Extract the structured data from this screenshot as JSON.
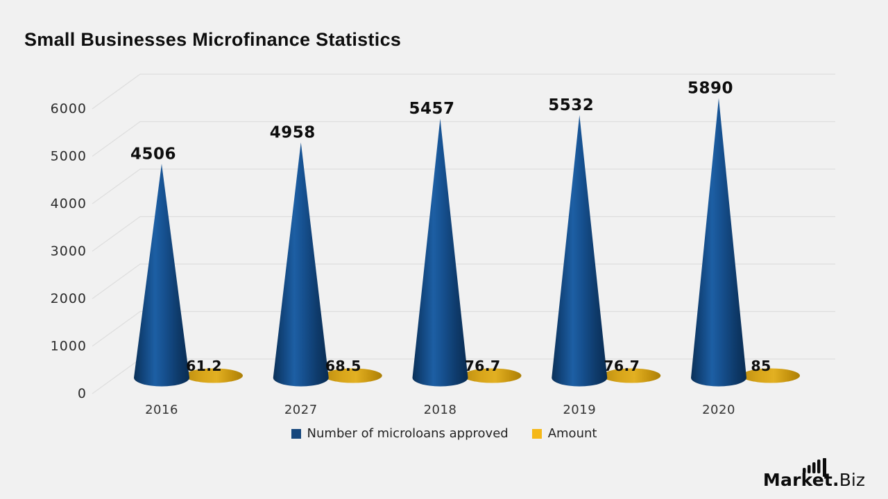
{
  "title": "Small Businesses Microfinance Statistics",
  "chart_data": {
    "type": "bar",
    "variant": "3d-cone",
    "title": "Small Businesses Microfinance Statistics",
    "xlabel": "",
    "ylabel": "",
    "categories": [
      "2016",
      "2027",
      "2018",
      "2019",
      "2020"
    ],
    "series": [
      {
        "name": "Number of microloans approved",
        "values": [
          4506,
          4958,
          5457,
          5532,
          5890
        ],
        "labels": [
          "4506",
          "4958",
          "5457",
          "5532",
          "5890"
        ],
        "color": "#16477d"
      },
      {
        "name": "Amount",
        "values": [
          61.2,
          68.5,
          76.7,
          76.7,
          85
        ],
        "labels": [
          "61.2",
          "68.5",
          "76.7",
          "76.7",
          "85"
        ],
        "color": "#f5b817"
      }
    ],
    "y_ticks": [
      0,
      1000,
      2000,
      3000,
      4000,
      5000,
      6000
    ],
    "ylim": [
      0,
      6000
    ],
    "grid": true,
    "legend_position": "bottom"
  },
  "colors": {
    "background": "#f1f1f1",
    "gridline": "#dedede",
    "text": "#222222",
    "value_label": "#0d0d0d",
    "cone_blue": "#16477d",
    "amount_gold": "#f5b817"
  },
  "logo": {
    "market": "Market.",
    "biz": "Biz"
  }
}
